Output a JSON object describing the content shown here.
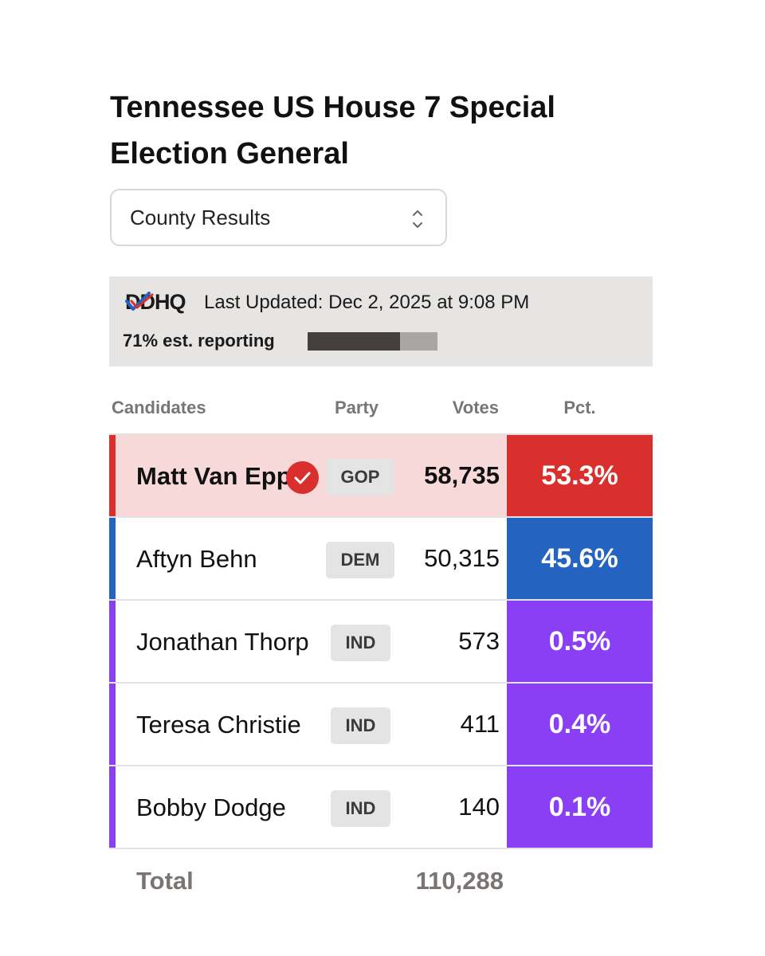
{
  "title": "Tennessee US House 7 Special Election General",
  "view_select": {
    "value": "County Results"
  },
  "status": {
    "logo": "DDHQ",
    "last_updated": "Last Updated: Dec 2, 2025 at 9:08 PM",
    "reporting_label": "71% est. reporting",
    "reporting_fraction": 0.71
  },
  "columns": {
    "candidates": "Candidates",
    "party": "Party",
    "votes": "Votes",
    "pct": "Pct."
  },
  "candidates": [
    {
      "name": "Matt Van Epps",
      "party": "GOP",
      "votes": "58,735",
      "pct": "53.3%",
      "winner": true,
      "color": "#d9302e",
      "row_bg": "#f7d9d9"
    },
    {
      "name": "Aftyn Behn",
      "party": "DEM",
      "votes": "50,315",
      "pct": "45.6%",
      "winner": false,
      "color": "#2563c0",
      "row_bg": "#ffffff"
    },
    {
      "name": "Jonathan Thorp",
      "party": "IND",
      "votes": "573",
      "pct": "0.5%",
      "winner": false,
      "color": "#8b3ff5",
      "row_bg": "#ffffff"
    },
    {
      "name": "Teresa Christie",
      "party": "IND",
      "votes": "411",
      "pct": "0.4%",
      "winner": false,
      "color": "#8b3ff5",
      "row_bg": "#ffffff"
    },
    {
      "name": "Bobby Dodge",
      "party": "IND",
      "votes": "140",
      "pct": "0.1%",
      "winner": false,
      "color": "#8b3ff5",
      "row_bg": "#ffffff"
    }
  ],
  "total": {
    "label": "Total",
    "votes": "110,288"
  }
}
